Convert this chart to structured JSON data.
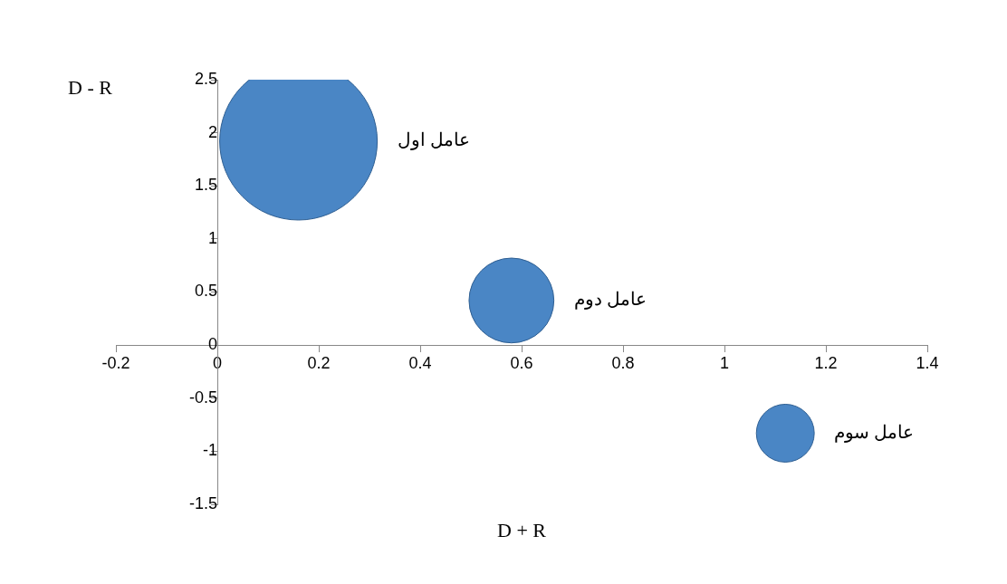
{
  "chart_data": {
    "type": "bubble",
    "xlabel": "D + R",
    "ylabel": "D - R",
    "xlim": [
      -0.2,
      1.4
    ],
    "xticks": [
      -0.2,
      0,
      0.2,
      0.4,
      0.6,
      0.8,
      1,
      1.2,
      1.4
    ],
    "ylim": [
      -1.5,
      2.5
    ],
    "yticks": [
      -1.5,
      -1,
      -0.5,
      0,
      0.5,
      1,
      1.5,
      2,
      2.5
    ],
    "grid": false,
    "legend": false,
    "series": [
      {
        "name": "عامل اول",
        "color": "#4a86c5",
        "x": [
          0.16
        ],
        "values": [
          1.92
        ],
        "sizes": [
          1
        ]
      },
      {
        "name": "عامل دوم",
        "color": "#4a86c5",
        "x": [
          0.58
        ],
        "values": [
          0.42
        ],
        "sizes": [
          0.29
        ]
      },
      {
        "name": "عامل سوم",
        "color": "#4a86c5",
        "x": [
          1.12
        ],
        "values": [
          -0.83
        ],
        "sizes": [
          0.135
        ]
      }
    ]
  }
}
